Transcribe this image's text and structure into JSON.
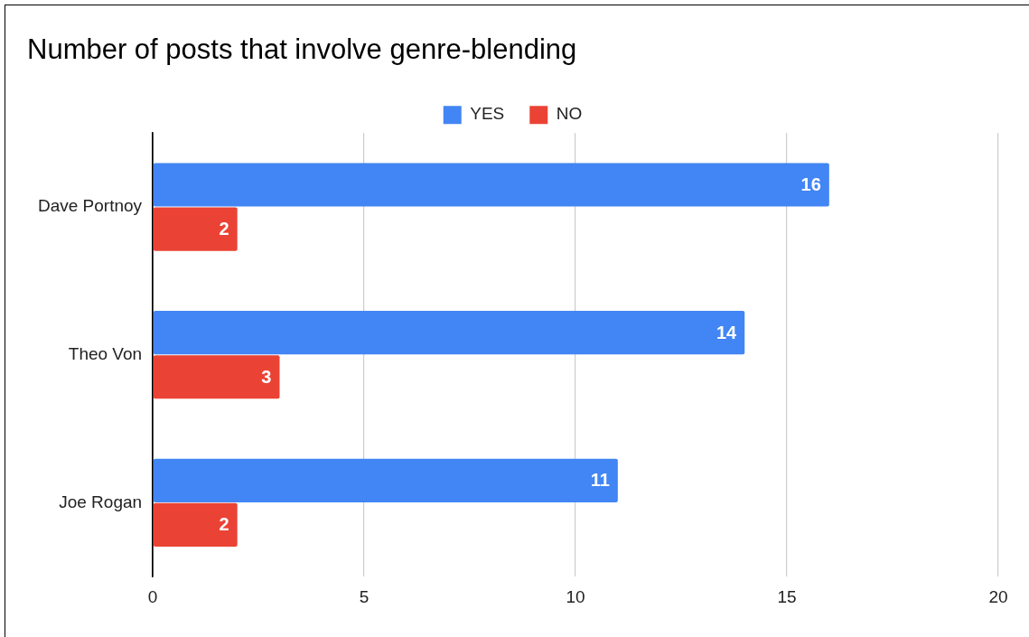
{
  "chart_data": {
    "type": "bar",
    "orientation": "horizontal",
    "title": "Number of posts that involve genre-blending",
    "categories": [
      "Dave Portnoy",
      "Theo Von",
      "Joe Rogan"
    ],
    "series": [
      {
        "name": "YES",
        "color": "#4285f4",
        "values": [
          16,
          14,
          11
        ]
      },
      {
        "name": "NO",
        "color": "#ea4335",
        "values": [
          2,
          3,
          2
        ]
      }
    ],
    "xlim": [
      0,
      20
    ],
    "xticks": [
      0,
      5,
      10,
      15,
      20
    ],
    "grid": "x",
    "legend": "top",
    "data_labels": true
  }
}
